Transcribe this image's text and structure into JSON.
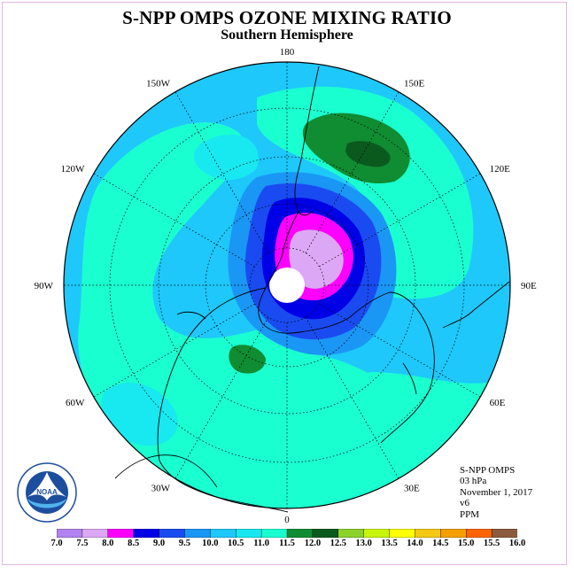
{
  "header": {
    "title": "S-NPP OMPS OZONE MIXING RATIO",
    "subtitle": "Southern Hemisphere"
  },
  "map": {
    "projection": "south-polar-stereographic",
    "longitude_labels": [
      {
        "text": "90W",
        "deg": -90
      },
      {
        "text": "60W",
        "deg": -60
      },
      {
        "text": "30W",
        "deg": -30
      },
      {
        "text": "0",
        "deg": 0
      },
      {
        "text": "30E",
        "deg": 30
      },
      {
        "text": "60E",
        "deg": 60
      },
      {
        "text": "90E",
        "deg": 90
      },
      {
        "text": "120E",
        "deg": 120
      },
      {
        "text": "150E",
        "deg": 150
      },
      {
        "text": "180",
        "deg": 180
      },
      {
        "text": "150W",
        "deg": -150
      },
      {
        "text": "120W",
        "deg": -120
      }
    ],
    "colors": {
      "ocean_background": "#1ec8fa",
      "band_10_5": "#18e8f0",
      "band_11": "#1affd0",
      "band_9_5": "#1a96f5",
      "band_9": "#1a4bf0",
      "band_8_5": "#0000e6",
      "band_8": "#ff00ff",
      "band_7_5": "#dca8f5",
      "band_11_5": "#108c32",
      "band_12": "#0a5a1e",
      "no_data": "#ffffff"
    }
  },
  "info": {
    "instrument": "S-NPP OMPS",
    "level": "03 hPa",
    "date": "November 1, 2017",
    "version": "v6",
    "units": "PPM"
  },
  "colorbar": {
    "ticks": [
      "7.0",
      "7.5",
      "8.0",
      "8.5",
      "9.0",
      "9.5",
      "10.0",
      "10.5",
      "11.0",
      "11.5",
      "12.0",
      "12.5",
      "13.0",
      "13.5",
      "14.0",
      "14.5",
      "15.0",
      "15.5",
      "16.0"
    ],
    "colors": [
      "#b482f0",
      "#dca8f5",
      "#ff00ff",
      "#0000e6",
      "#1a4bf0",
      "#1a96f5",
      "#1ec8fa",
      "#18e8f0",
      "#1affd0",
      "#108c32",
      "#0a5a1e",
      "#8cd228",
      "#c8f50a",
      "#ffff00",
      "#f5c814",
      "#f5a000",
      "#ff6400",
      "#ff0000",
      "#8c5a3c"
    ]
  },
  "logo": {
    "text": "NOAA",
    "ring_text": "NATIONAL OCEANIC AND ATMOSPHERIC ADMINISTRATION · U.S. DEPARTMENT OF COMMERCE"
  }
}
